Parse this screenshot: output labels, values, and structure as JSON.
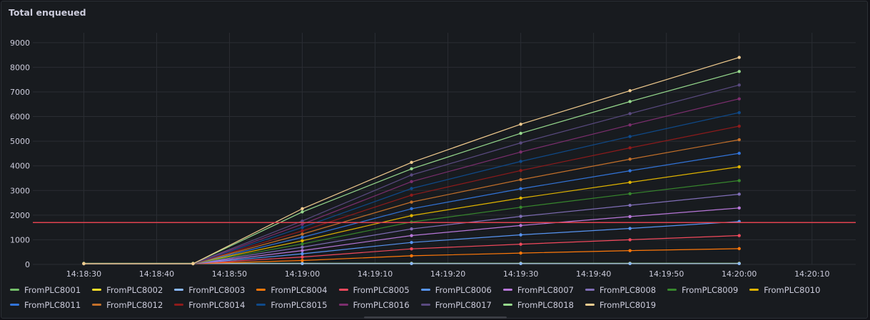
{
  "panel": {
    "title": "Total enqueued"
  },
  "chart_data": {
    "type": "line",
    "x_ticks": [
      "14:18:30",
      "14:18:40",
      "14:18:50",
      "14:19:00",
      "14:19:10",
      "14:19:20",
      "14:19:30",
      "14:19:40",
      "14:19:50",
      "14:20:00",
      "14:20:10"
    ],
    "x_range": [
      "14:18:23",
      "14:20:16"
    ],
    "y_ticks": [
      0,
      1000,
      2000,
      3000,
      4000,
      5000,
      6000,
      7000,
      8000,
      9000
    ],
    "ylim": [
      0,
      9400
    ],
    "grid": true,
    "legend_placement": "bottom",
    "x": [
      "14:18:30",
      "14:18:45",
      "14:19:00",
      "14:19:15",
      "14:19:30",
      "14:19:45",
      "14:20:00"
    ],
    "threshold": {
      "value": 1700,
      "color": "#e0424f"
    },
    "series": [
      {
        "name": "FromPLC8001",
        "color": "#73bf69",
        "values": [
          45,
          45,
          45,
          45,
          45,
          45,
          45
        ]
      },
      {
        "name": "FromPLC8002",
        "color": "#fade2a",
        "values": [
          40,
          40,
          40,
          40,
          40,
          40,
          40
        ]
      },
      {
        "name": "FromPLC8003",
        "color": "#8ab8ff",
        "values": [
          35,
          35,
          35,
          35,
          35,
          35,
          35
        ]
      },
      {
        "name": "FromPLC8004",
        "color": "#ff780a",
        "values": [
          30,
          30,
          160,
          350,
          460,
          560,
          640
        ]
      },
      {
        "name": "FromPLC8005",
        "color": "#f2495c",
        "values": [
          30,
          30,
          300,
          630,
          820,
          1000,
          1170
        ]
      },
      {
        "name": "FromPLC8006",
        "color": "#5794f2",
        "values": [
          30,
          30,
          430,
          890,
          1200,
          1460,
          1740
        ]
      },
      {
        "name": "FromPLC8007",
        "color": "#b877d9",
        "values": [
          30,
          30,
          560,
          1170,
          1580,
          1940,
          2290
        ]
      },
      {
        "name": "FromPLC8008",
        "color": "#806eb7",
        "values": [
          30,
          30,
          700,
          1440,
          1950,
          2400,
          2850
        ]
      },
      {
        "name": "FromPLC8009",
        "color": "#37872d",
        "values": [
          30,
          30,
          830,
          1720,
          2320,
          2870,
          3400
        ]
      },
      {
        "name": "FromPLC8010",
        "color": "#e0b400",
        "values": [
          30,
          30,
          960,
          1980,
          2690,
          3330,
          3960
        ]
      },
      {
        "name": "FromPLC8011",
        "color": "#3274d9",
        "values": [
          30,
          30,
          1100,
          2260,
          3070,
          3800,
          4510
        ]
      },
      {
        "name": "FromPLC8012",
        "color": "#c4702a",
        "values": [
          30,
          30,
          1230,
          2530,
          3440,
          4270,
          5060
        ]
      },
      {
        "name": "FromPLC8014",
        "color": "#8e1b1b",
        "values": [
          30,
          30,
          1360,
          2810,
          3810,
          4730,
          5610
        ]
      },
      {
        "name": "FromPLC8015",
        "color": "#0f4a8a",
        "values": [
          30,
          30,
          1500,
          3080,
          4180,
          5190,
          6160
        ]
      },
      {
        "name": "FromPLC8016",
        "color": "#7c2e6e",
        "values": [
          30,
          30,
          1630,
          3360,
          4560,
          5660,
          6720
        ]
      },
      {
        "name": "FromPLC8017",
        "color": "#5a4a80",
        "values": [
          30,
          30,
          1760,
          3630,
          4930,
          6120,
          7280
        ]
      },
      {
        "name": "FromPLC8018",
        "color": "#96d98d",
        "values": [
          30,
          30,
          2130,
          3880,
          5320,
          6610,
          7830
        ]
      },
      {
        "name": "FromPLC8019",
        "color": "#f2cc8f",
        "values": [
          30,
          30,
          2260,
          4140,
          5690,
          7050,
          8400
        ]
      }
    ]
  }
}
